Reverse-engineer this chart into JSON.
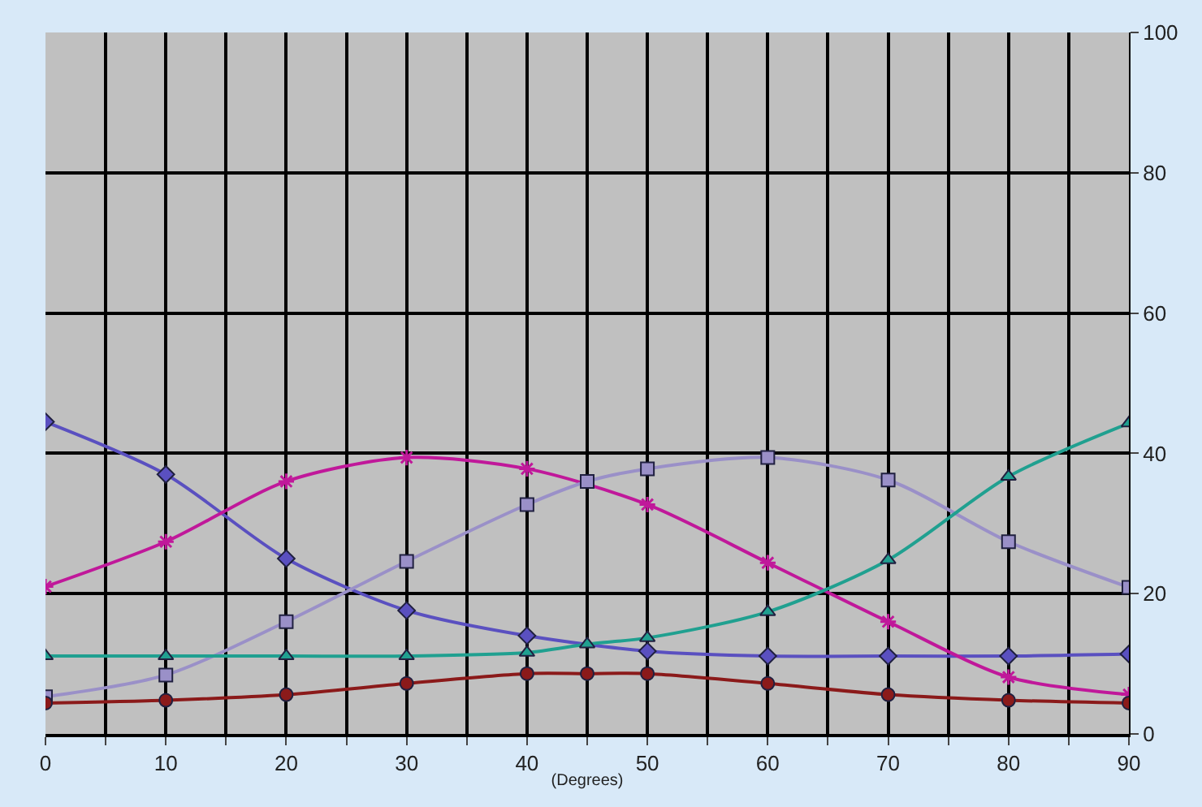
{
  "chart_data": {
    "type": "line",
    "xlabel": "(Degrees)",
    "xlim": [
      0,
      90
    ],
    "xticks": [
      0,
      {
        "value": 5,
        "label": null
      },
      10,
      {
        "value": 15,
        "label": null
      },
      20,
      {
        "value": 25,
        "label": null
      },
      30,
      {
        "value": 35,
        "label": null
      },
      40,
      {
        "value": 45,
        "label": null
      },
      50,
      {
        "value": 55,
        "label": null
      },
      60,
      {
        "value": 65,
        "label": null
      },
      70,
      {
        "value": 75,
        "label": null
      },
      80,
      {
        "value": 85,
        "label": null
      },
      90
    ],
    "ylim": [
      0,
      100
    ],
    "yticks": [
      0,
      20,
      40,
      60,
      80,
      100
    ],
    "grid": true,
    "series": [
      {
        "color": "#5a50c0",
        "marker": "diamond",
        "x": [
          0,
          10,
          20,
          30,
          40,
          50,
          60,
          70,
          80,
          90
        ],
        "values": [
          44.5,
          37,
          25,
          17.6,
          14,
          11.8,
          11.1,
          11.1,
          11.1,
          11.4
        ]
      },
      {
        "color": "#c0189a",
        "marker": "cross",
        "x": [
          0,
          10,
          20,
          30,
          40,
          50,
          60,
          70,
          80,
          90
        ],
        "values": [
          21,
          27.4,
          36,
          39.4,
          37.8,
          32.7,
          24.4,
          16,
          8.1,
          5.6
        ]
      },
      {
        "color": "#9a90c8",
        "marker": "square",
        "x": [
          0,
          10,
          20,
          30,
          40,
          45,
          50,
          60,
          70,
          80,
          90
        ],
        "values": [
          5.3,
          8.4,
          16,
          24.6,
          32.7,
          36,
          37.8,
          39.4,
          36.2,
          27.4,
          20.9
        ]
      },
      {
        "color": "#20a090",
        "marker": "triangle",
        "x": [
          0,
          10,
          20,
          30,
          40,
          45,
          50,
          60,
          70,
          80,
          90
        ],
        "values": [
          11.1,
          11.1,
          11.1,
          11.1,
          11.6,
          12.8,
          13.7,
          17.4,
          24.8,
          36.7,
          44.3
        ]
      },
      {
        "color": "#8b1a1a",
        "marker": "circle",
        "x": [
          0,
          10,
          20,
          30,
          40,
          45,
          50,
          60,
          70,
          80,
          90
        ],
        "values": [
          4.4,
          4.8,
          5.6,
          7.2,
          8.6,
          8.6,
          8.6,
          7.2,
          5.6,
          4.8,
          4.4
        ]
      }
    ]
  }
}
